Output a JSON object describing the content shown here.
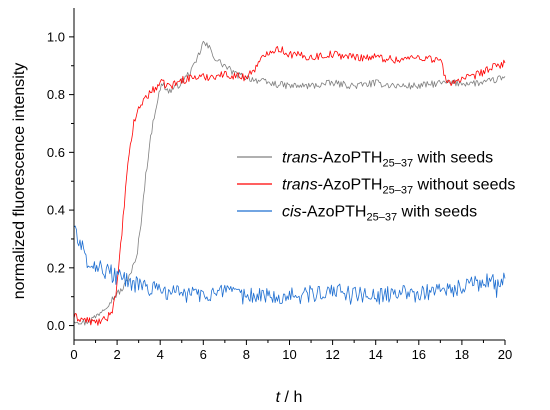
{
  "chart_data": {
    "type": "line",
    "xlabel": {
      "var": "t",
      "sep": " / ",
      "unit": "h"
    },
    "ylabel": "normalized fluorescence intensity",
    "xlim": [
      0,
      20
    ],
    "ylim": [
      -0.05,
      1.1
    ],
    "x_ticks": [
      "0",
      "2",
      "4",
      "6",
      "8",
      "10",
      "12",
      "14",
      "16",
      "18",
      "20"
    ],
    "y_ticks": [
      "0.0",
      "0.2",
      "0.4",
      "0.6",
      "0.8",
      "1.0"
    ],
    "grid": false,
    "legend_position": "center-right",
    "series": [
      {
        "legend": {
          "prefix": "trans",
          "name": "-AzoPTH",
          "sub": "25–37",
          "suffix": " with seeds"
        },
        "color": "#808080",
        "points": [
          [
            0,
            0.02
          ],
          [
            0.5,
            0.01
          ],
          [
            1,
            0.03
          ],
          [
            1.5,
            0.07
          ],
          [
            2,
            0.11
          ],
          [
            2.3,
            0.13
          ],
          [
            2.6,
            0.18
          ],
          [
            2.9,
            0.23
          ],
          [
            3.1,
            0.35
          ],
          [
            3.3,
            0.5
          ],
          [
            3.5,
            0.62
          ],
          [
            3.7,
            0.72
          ],
          [
            3.9,
            0.79
          ],
          [
            4.1,
            0.84
          ],
          [
            4.4,
            0.81
          ],
          [
            4.8,
            0.83
          ],
          [
            5.2,
            0.86
          ],
          [
            5.6,
            0.9
          ],
          [
            6,
            0.98
          ],
          [
            6.3,
            0.96
          ],
          [
            6.6,
            0.92
          ],
          [
            7,
            0.9
          ],
          [
            7.5,
            0.87
          ],
          [
            8,
            0.86
          ],
          [
            9,
            0.84
          ],
          [
            10,
            0.83
          ],
          [
            11,
            0.83
          ],
          [
            12,
            0.84
          ],
          [
            13,
            0.83
          ],
          [
            14,
            0.84
          ],
          [
            15,
            0.83
          ],
          [
            16,
            0.83
          ],
          [
            17,
            0.84
          ],
          [
            18,
            0.84
          ],
          [
            19,
            0.84
          ],
          [
            20,
            0.86
          ]
        ]
      },
      {
        "legend": {
          "prefix": "trans",
          "name": "-AzoPTH",
          "sub": "25–37",
          "suffix": " without seeds"
        },
        "color": "#ff0000",
        "points": [
          [
            0,
            0.03
          ],
          [
            0.5,
            0.02
          ],
          [
            1,
            0.01
          ],
          [
            1.5,
            0.02
          ],
          [
            1.8,
            0.06
          ],
          [
            2,
            0.14
          ],
          [
            2.2,
            0.3
          ],
          [
            2.4,
            0.48
          ],
          [
            2.6,
            0.62
          ],
          [
            2.8,
            0.71
          ],
          [
            3,
            0.75
          ],
          [
            3.3,
            0.79
          ],
          [
            3.6,
            0.81
          ],
          [
            4,
            0.84
          ],
          [
            4.5,
            0.83
          ],
          [
            5,
            0.85
          ],
          [
            5.5,
            0.86
          ],
          [
            6,
            0.86
          ],
          [
            7,
            0.87
          ],
          [
            8,
            0.86
          ],
          [
            8.5,
            0.9
          ],
          [
            9,
            0.95
          ],
          [
            9.5,
            0.96
          ],
          [
            10,
            0.94
          ],
          [
            11,
            0.93
          ],
          [
            12,
            0.94
          ],
          [
            13,
            0.93
          ],
          [
            14,
            0.93
          ],
          [
            15,
            0.92
          ],
          [
            16,
            0.93
          ],
          [
            17,
            0.92
          ],
          [
            17.3,
            0.84
          ],
          [
            17.8,
            0.85
          ],
          [
            18.5,
            0.86
          ],
          [
            19,
            0.88
          ],
          [
            20,
            0.91
          ]
        ]
      },
      {
        "legend": {
          "prefix": "cis",
          "name": "-AzoPTH",
          "sub": "25–37",
          "suffix": " with seeds"
        },
        "color": "#1f6fd1",
        "points": [
          [
            0,
            0.35
          ],
          [
            0.3,
            0.28
          ],
          [
            0.6,
            0.23
          ],
          [
            1,
            0.21
          ],
          [
            1.5,
            0.19
          ],
          [
            2,
            0.17
          ],
          [
            2.5,
            0.15
          ],
          [
            3,
            0.14
          ],
          [
            3.5,
            0.13
          ],
          [
            4,
            0.12
          ],
          [
            5,
            0.11
          ],
          [
            6,
            0.11
          ],
          [
            7,
            0.11
          ],
          [
            8,
            0.1
          ],
          [
            9,
            0.11
          ],
          [
            10,
            0.1
          ],
          [
            11,
            0.11
          ],
          [
            12,
            0.12
          ],
          [
            13,
            0.11
          ],
          [
            14,
            0.1
          ],
          [
            15,
            0.11
          ],
          [
            16,
            0.11
          ],
          [
            17,
            0.12
          ],
          [
            18,
            0.13
          ],
          [
            19,
            0.15
          ],
          [
            20,
            0.16
          ]
        ]
      }
    ]
  }
}
